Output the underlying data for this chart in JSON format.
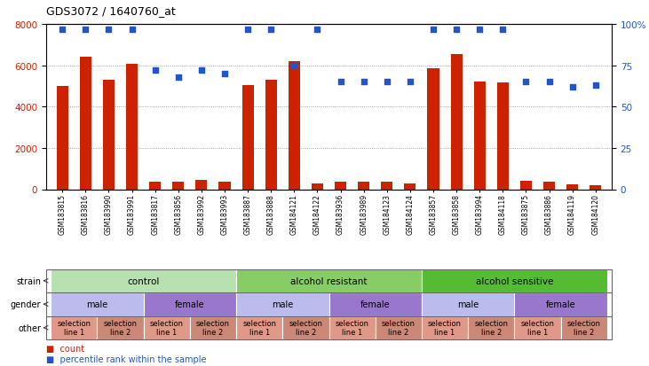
{
  "title": "GDS3072 / 1640760_at",
  "samples": [
    "GSM183815",
    "GSM183816",
    "GSM183990",
    "GSM183991",
    "GSM183817",
    "GSM183856",
    "GSM183992",
    "GSM183993",
    "GSM183887",
    "GSM183888",
    "GSM184121",
    "GSM184122",
    "GSM183936",
    "GSM183989",
    "GSM184123",
    "GSM184124",
    "GSM183857",
    "GSM183858",
    "GSM183994",
    "GSM184118",
    "GSM183875",
    "GSM183886",
    "GSM184119",
    "GSM184120"
  ],
  "counts": [
    5000,
    6400,
    5300,
    6050,
    350,
    350,
    450,
    350,
    5050,
    5300,
    6200,
    300,
    350,
    350,
    350,
    300,
    5850,
    6550,
    5200,
    5150,
    400,
    350,
    250,
    200
  ],
  "percentiles": [
    97,
    97,
    97,
    97,
    72,
    68,
    72,
    70,
    97,
    97,
    75,
    97,
    65,
    65,
    65,
    65,
    97,
    97,
    97,
    97,
    65,
    65,
    62,
    63
  ],
  "bar_color": "#cc2200",
  "dot_color": "#2255cc",
  "ylim_left": [
    0,
    8000
  ],
  "ylim_right": [
    0,
    100
  ],
  "yticks_left": [
    0,
    2000,
    4000,
    6000,
    8000
  ],
  "yticks_right": [
    0,
    25,
    50,
    75,
    100
  ],
  "strain_groups": [
    {
      "label": "control",
      "start": 0,
      "end": 8,
      "color": "#b8e0b0"
    },
    {
      "label": "alcohol resistant",
      "start": 8,
      "end": 16,
      "color": "#88cc66"
    },
    {
      "label": "alcohol sensitive",
      "start": 16,
      "end": 24,
      "color": "#55bb33"
    }
  ],
  "gender_groups": [
    {
      "label": "male",
      "start": 0,
      "end": 4,
      "color": "#bbbbee"
    },
    {
      "label": "female",
      "start": 4,
      "end": 8,
      "color": "#9977cc"
    },
    {
      "label": "male",
      "start": 8,
      "end": 12,
      "color": "#bbbbee"
    },
    {
      "label": "female",
      "start": 12,
      "end": 16,
      "color": "#9977cc"
    },
    {
      "label": "male",
      "start": 16,
      "end": 20,
      "color": "#bbbbee"
    },
    {
      "label": "female",
      "start": 20,
      "end": 24,
      "color": "#9977cc"
    }
  ],
  "other_groups": [
    {
      "label": "selection\nline 1",
      "start": 0,
      "end": 2,
      "color": "#e09988"
    },
    {
      "label": "selection\nline 2",
      "start": 2,
      "end": 4,
      "color": "#cc8877"
    },
    {
      "label": "selection\nline 1",
      "start": 4,
      "end": 6,
      "color": "#e09988"
    },
    {
      "label": "selection\nline 2",
      "start": 6,
      "end": 8,
      "color": "#cc8877"
    },
    {
      "label": "selection\nline 1",
      "start": 8,
      "end": 10,
      "color": "#e09988"
    },
    {
      "label": "selection\nline 2",
      "start": 10,
      "end": 12,
      "color": "#cc8877"
    },
    {
      "label": "selection\nline 1",
      "start": 12,
      "end": 14,
      "color": "#e09988"
    },
    {
      "label": "selection\nline 2",
      "start": 14,
      "end": 16,
      "color": "#cc8877"
    },
    {
      "label": "selection\nline 1",
      "start": 16,
      "end": 18,
      "color": "#e09988"
    },
    {
      "label": "selection\nline 2",
      "start": 18,
      "end": 20,
      "color": "#cc8877"
    },
    {
      "label": "selection\nline 1",
      "start": 20,
      "end": 22,
      "color": "#e09988"
    },
    {
      "label": "selection\nline 2",
      "start": 22,
      "end": 24,
      "color": "#cc8877"
    }
  ],
  "row_labels": [
    "strain",
    "gender",
    "other"
  ],
  "legend_count_label": "count",
  "legend_pct_label": "percentile rank within the sample",
  "bg_color": "#ffffff",
  "plot_bg_color": "#ffffff",
  "grid_color": "#888888"
}
